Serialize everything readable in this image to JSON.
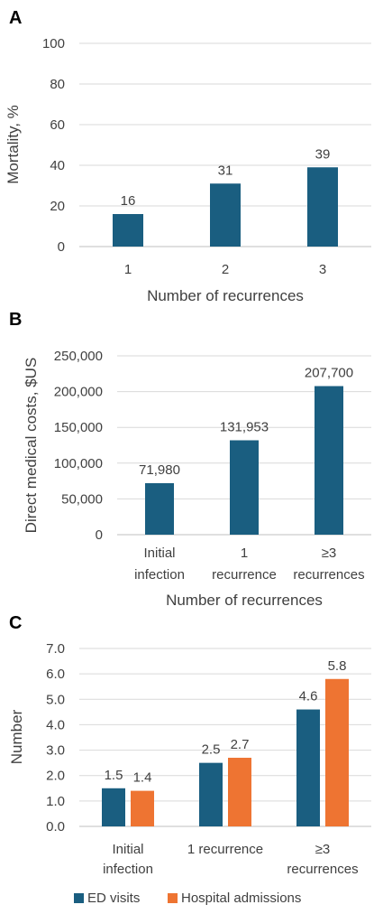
{
  "panels": [
    {
      "letter": "A"
    },
    {
      "letter": "B"
    },
    {
      "letter": "C"
    }
  ],
  "colors": {
    "ed": "#1a5e80",
    "hosp": "#ee7432",
    "grid": "#d9d9d9",
    "axis": "#bfbfbf"
  },
  "chart_data": [
    {
      "type": "bar",
      "categories": [
        "1",
        "2",
        "3"
      ],
      "values": [
        16,
        31,
        39
      ],
      "data_labels": [
        "16",
        "31",
        "39"
      ],
      "ylim": [
        0,
        100
      ],
      "yticks": [
        "0",
        "20",
        "40",
        "60",
        "80",
        "100"
      ],
      "ylabel": "Mortality, %",
      "xlabel": "Number of recurrences",
      "grid": true
    },
    {
      "type": "bar",
      "categories": [
        [
          "Initial",
          "infection"
        ],
        [
          "1",
          "recurrence"
        ],
        [
          "≥3",
          "recurrences"
        ]
      ],
      "values": [
        71980,
        131953,
        207700
      ],
      "data_labels": [
        "71,980",
        "131,953",
        "207,700"
      ],
      "ylim": [
        0,
        250000
      ],
      "yticks": [
        "0",
        "50,000",
        "100,000",
        "150,000",
        "200,000",
        "250,000"
      ],
      "ylabel": "Direct medical costs, $US",
      "xlabel": "Number of recurrences",
      "grid": true
    },
    {
      "type": "bar",
      "categories": [
        [
          "Initial",
          "infection"
        ],
        [
          "1 recurrence"
        ],
        [
          "≥3",
          "recurrences"
        ]
      ],
      "series": [
        {
          "name": "ED visits",
          "values": [
            1.5,
            2.5,
            4.6
          ],
          "data_labels": [
            "1.5",
            "2.5",
            "4.6"
          ]
        },
        {
          "name": "Hospital admissions",
          "values": [
            1.4,
            2.7,
            5.8
          ],
          "data_labels": [
            "1.4",
            "2.7",
            "5.8"
          ]
        }
      ],
      "ylim": [
        0,
        7
      ],
      "yticks": [
        "0.0",
        "1.0",
        "2.0",
        "3.0",
        "4.0",
        "5.0",
        "6.0",
        "7.0"
      ],
      "ylabel": "Number",
      "xlabel": "",
      "legend": "bottom",
      "grid": true
    }
  ]
}
